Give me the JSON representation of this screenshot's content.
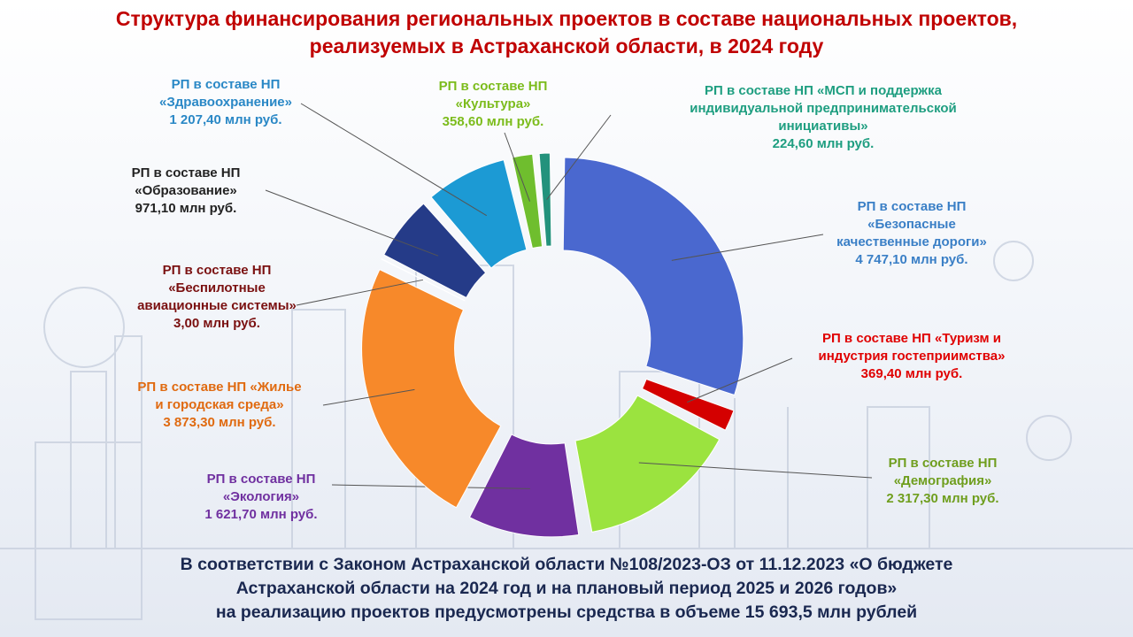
{
  "chart_data": {
    "type": "pie",
    "title": "Структура финансирования региональных проектов в составе национальных проектов,\nреализуемых в Астраханской области, в 2024 году",
    "categories": [
      "РП в составе НП\n«Безопасные\nкачественные дороги»",
      "РП в составе НП «Туризм и\nиндустрия гостеприимства»",
      "РП в составе НП\n«Демография»",
      "РП в составе НП\n«Экология»",
      "РП в составе НП «Жилье\nи городская среда»",
      "РП в составе НП\n«Беспилотные\nавиационные системы»",
      "РП в составе НП\n«Образование»",
      "РП в составе НП\n«Здравоохранение»",
      "РП в составе НП\n«Культура»",
      "РП в составе НП «МСП и поддержка\nиндивидуальной предпринимательской\nинициативы»"
    ],
    "values": [
      4747.1,
      369.4,
      2317.3,
      1621.7,
      3873.3,
      3.0,
      971.1,
      1207.4,
      358.6,
      224.6
    ],
    "value_labels": [
      "4 747,10 млн руб.",
      "369,40 млн руб.",
      "2 317,30 млн руб.",
      "1 621,70 млн руб.",
      "3 873,30 млн руб.",
      "3,00 млн руб.",
      "971,10 млн руб.",
      "1 207,40 млн руб.",
      "358,60 млн руб.",
      "224,60 млн руб."
    ],
    "colors": [
      "#4a68cf",
      "#d40000",
      "#9be33f",
      "#7030a0",
      "#f7892a",
      "#8a1c1c",
      "#253b88",
      "#1c9ad4",
      "#6fbe2e",
      "#23927c"
    ],
    "label_colors": [
      "#3a7fc6",
      "#e00000",
      "#6f9e1e",
      "#7030a0",
      "#e06a10",
      "#7a1010",
      "#222222",
      "#2a88c6",
      "#7cbc1c",
      "#1e9e80"
    ],
    "donut": true,
    "note": "В соответствии с Законом Астраханской области №108/2023-ОЗ от 11.12.2023 «О бюджете\nАстраханской области на 2024 год и на плановый период 2025 и 2026 годов»\nна реализацию проектов предусмотрены средства в объеме 15 693,5 млн рублей"
  }
}
